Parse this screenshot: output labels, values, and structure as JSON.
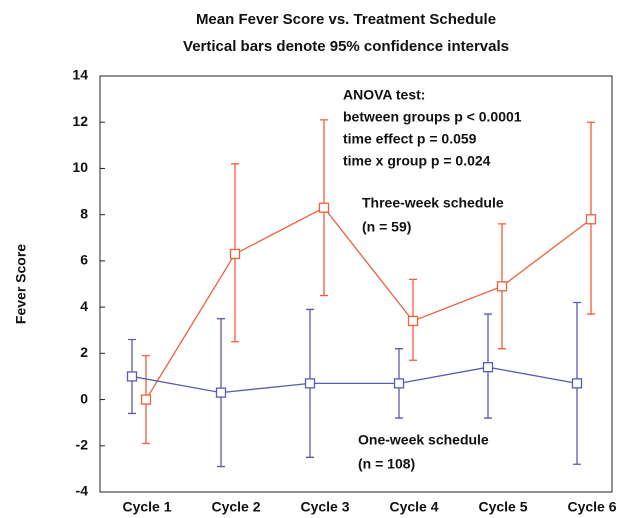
{
  "chart_data": {
    "type": "line",
    "title": "Mean Fever Score vs. Treatment Schedule",
    "subtitle": "Vertical bars denote 95% confidence intervals",
    "y_label": "Fever Score",
    "categories": [
      "Cycle 1",
      "Cycle 2",
      "Cycle 3",
      "Cycle 4",
      "Cycle 5",
      "Cycle 6"
    ],
    "ylim": [
      -4,
      14
    ],
    "yticks": [
      -4,
      -2,
      0,
      2,
      4,
      6,
      8,
      10,
      12,
      14
    ],
    "annotation": [
      "ANOVA test:",
      "between groups p < 0.0001",
      "time effect p = 0.059",
      "time x group p = 0.024"
    ],
    "series": [
      {
        "name": "Three-week schedule",
        "note": "(n = 59)",
        "color": "#ee5f3c",
        "values": [
          0,
          6.3,
          8.3,
          3.4,
          4.9,
          7.8
        ],
        "lower": [
          -1.9,
          2.5,
          4.5,
          1.7,
          2.2,
          3.7
        ],
        "upper": [
          1.9,
          10.2,
          12.1,
          5.2,
          7.6,
          12.0
        ]
      },
      {
        "name": "One-week schedule",
        "note": "(n = 108)",
        "color": "#5b5bb0",
        "values": [
          1.0,
          0.3,
          0.7,
          0.7,
          1.4,
          0.7
        ],
        "lower": [
          -0.6,
          -2.9,
          -2.5,
          -0.8,
          -0.8,
          -2.8
        ],
        "upper": [
          2.6,
          3.5,
          3.9,
          2.2,
          3.7,
          4.2
        ]
      }
    ]
  }
}
